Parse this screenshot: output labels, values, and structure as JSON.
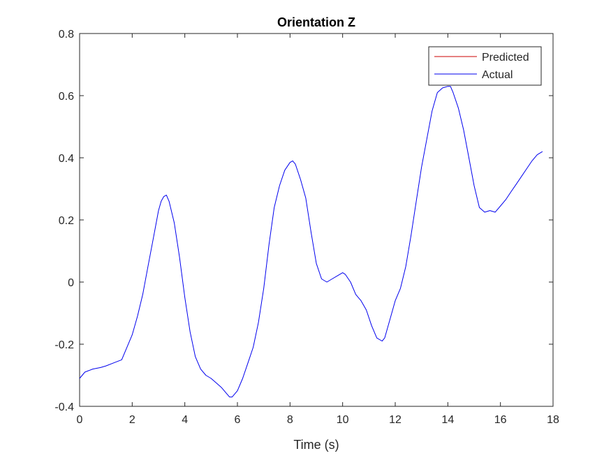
{
  "chart_data": {
    "type": "line",
    "title": "Orientation Z",
    "xlabel": "Time (s)",
    "ylabel": "",
    "xlim": [
      0,
      18
    ],
    "ylim": [
      -0.4,
      0.8
    ],
    "xticks": [
      0,
      2,
      4,
      6,
      8,
      10,
      12,
      14,
      16,
      18
    ],
    "xtick_labels": [
      "0",
      "2",
      "4",
      "6",
      "8",
      "10",
      "12",
      "14",
      "16",
      "18"
    ],
    "yticks": [
      -0.4,
      -0.2,
      0,
      0.2,
      0.4,
      0.6,
      0.8
    ],
    "ytick_labels": [
      "-0.4",
      "-0.2",
      "0",
      "0.2",
      "0.4",
      "0.6",
      "0.8"
    ],
    "grid": false,
    "legend_position": "top-right",
    "series": [
      {
        "name": "Predicted",
        "color": "#cc0000",
        "x": [],
        "y": []
      },
      {
        "name": "Actual",
        "color": "#0000ee",
        "x": [
          0,
          0.2,
          0.5,
          0.8,
          1.0,
          1.3,
          1.6,
          1.8,
          2.0,
          2.2,
          2.4,
          2.6,
          2.8,
          3.0,
          3.1,
          3.2,
          3.3,
          3.4,
          3.6,
          3.8,
          4.0,
          4.2,
          4.4,
          4.6,
          4.8,
          5.0,
          5.2,
          5.4,
          5.6,
          5.7,
          5.8,
          6.0,
          6.2,
          6.4,
          6.6,
          6.8,
          7.0,
          7.2,
          7.4,
          7.6,
          7.8,
          8.0,
          8.1,
          8.2,
          8.4,
          8.6,
          8.8,
          9.0,
          9.2,
          9.4,
          9.6,
          9.8,
          10.0,
          10.1,
          10.3,
          10.5,
          10.7,
          10.9,
          11.1,
          11.3,
          11.5,
          11.6,
          11.8,
          12.0,
          12.2,
          12.4,
          12.6,
          12.8,
          13.0,
          13.2,
          13.4,
          13.6,
          13.8,
          14.0,
          14.1,
          14.2,
          14.4,
          14.6,
          14.8,
          15.0,
          15.2,
          15.4,
          15.6,
          15.8,
          16.0,
          16.2,
          16.4,
          16.6,
          16.8,
          17.0,
          17.2,
          17.4,
          17.6
        ],
        "y": [
          -0.31,
          -0.29,
          -0.28,
          -0.275,
          -0.27,
          -0.26,
          -0.25,
          -0.21,
          -0.17,
          -0.11,
          -0.04,
          0.05,
          0.14,
          0.23,
          0.26,
          0.275,
          0.28,
          0.26,
          0.19,
          0.08,
          -0.05,
          -0.16,
          -0.24,
          -0.28,
          -0.3,
          -0.31,
          -0.325,
          -0.34,
          -0.36,
          -0.37,
          -0.37,
          -0.35,
          -0.31,
          -0.26,
          -0.21,
          -0.13,
          -0.02,
          0.12,
          0.24,
          0.31,
          0.36,
          0.385,
          0.39,
          0.38,
          0.33,
          0.27,
          0.16,
          0.06,
          0.01,
          0.0,
          0.01,
          0.02,
          0.03,
          0.025,
          0.0,
          -0.04,
          -0.06,
          -0.09,
          -0.14,
          -0.18,
          -0.19,
          -0.18,
          -0.12,
          -0.06,
          -0.02,
          0.05,
          0.15,
          0.26,
          0.37,
          0.46,
          0.55,
          0.61,
          0.625,
          0.63,
          0.63,
          0.61,
          0.56,
          0.49,
          0.4,
          0.31,
          0.24,
          0.225,
          0.23,
          0.225,
          0.245,
          0.265,
          0.29,
          0.315,
          0.34,
          0.365,
          0.39,
          0.41,
          0.42
        ]
      }
    ]
  }
}
